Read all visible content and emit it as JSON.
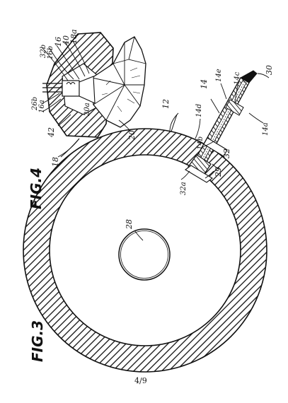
{
  "figures": {
    "fig3_title": "FIG.3",
    "fig4_title": "FIG.4"
  },
  "page_number": "4/9",
  "reference_numerals": {
    "n12": "12",
    "n14": "14",
    "n14a": "14a",
    "n14b": "14b",
    "n14c": "14c",
    "n14d": "14d",
    "n14e": "14e",
    "n16": "16",
    "n16a": "16a",
    "n16b": "16b",
    "n18": "18",
    "n18a": "18a",
    "n20": "20",
    "n20a": "20a",
    "n26b": "26b",
    "n28": "28",
    "n29": "29",
    "n30": "30",
    "n32": "32",
    "n32a": "32a",
    "n32b": "32b",
    "n40": "40",
    "n42": "42"
  }
}
